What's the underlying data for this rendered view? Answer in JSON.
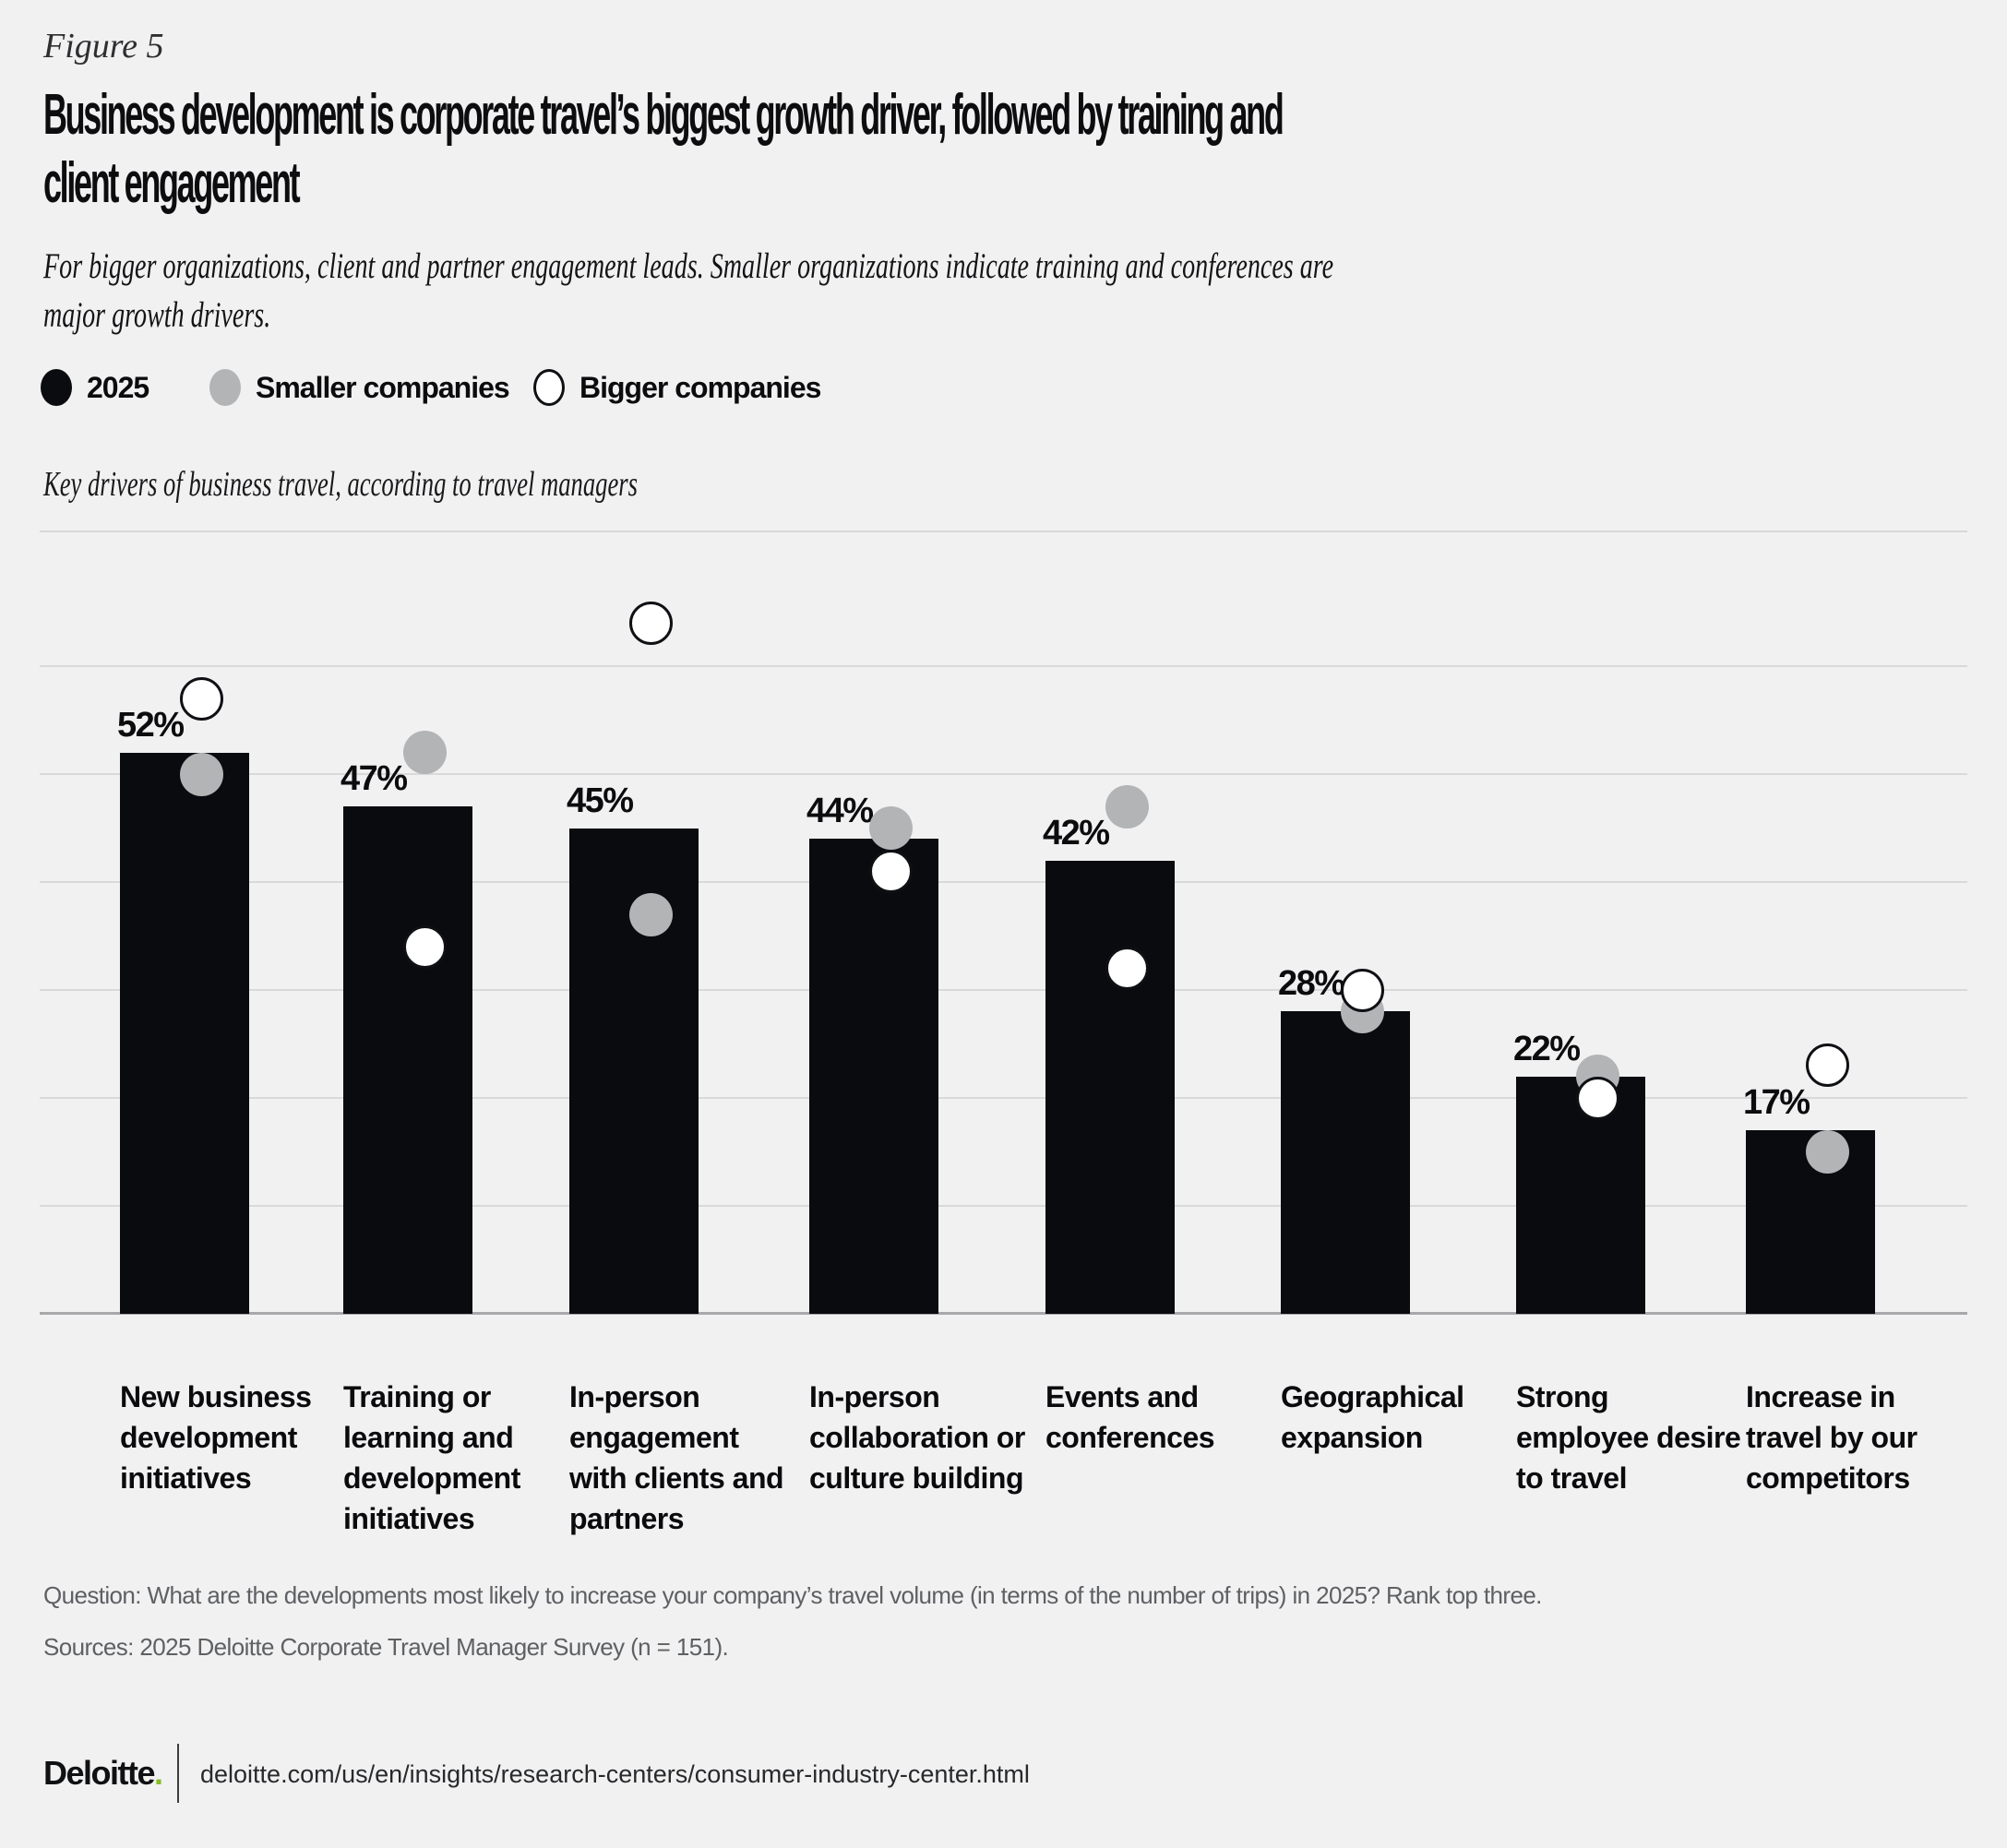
{
  "figure_label": "Figure 5",
  "title": "Business development is corporate travel’s biggest growth driver, followed by training and client engagement",
  "subtitle": "For bigger organizations, client and partner engagement leads. Smaller organizations indicate training and conferences are major growth drivers.",
  "legend": {
    "items": [
      {
        "label": "2025"
      },
      {
        "label": "Smaller companies"
      },
      {
        "label": "Bigger companies"
      }
    ]
  },
  "chart_label": "Key drivers of business travel, according to travel managers",
  "chart_data": {
    "type": "bar",
    "title": "Key drivers of business travel, according to travel managers",
    "categories": [
      "New business development initiatives",
      "Training or learning and development initiatives",
      "In-person engagement with clients and partners",
      "In-person collaboration or culture building",
      "Events and conferences",
      "Geographical expansion",
      "Strong employee desire to travel",
      "Increase in travel by our competitors"
    ],
    "series": [
      {
        "name": "2025",
        "style": "black-bar",
        "values": [
          52,
          47,
          45,
          44,
          42,
          28,
          22,
          17
        ],
        "value_labels": [
          "52%",
          "47%",
          "45%",
          "44%",
          "42%",
          "28%",
          "22%",
          "17%"
        ]
      },
      {
        "name": "Smaller companies",
        "style": "gray-dot",
        "values": [
          50,
          52,
          37,
          45,
          47,
          28,
          22,
          15
        ]
      },
      {
        "name": "Bigger companies",
        "style": "white-dot",
        "values": [
          57,
          34,
          64,
          41,
          32,
          30,
          20,
          23
        ]
      }
    ],
    "ylabel": "",
    "xlabel": "",
    "ylim": [
      0,
      72.5
    ],
    "gridline_values": [
      10,
      20,
      30,
      40,
      50,
      60
    ],
    "grid_on": true,
    "legend_position": "top"
  },
  "footnote": {
    "question": "Question: What are the developments most likely to increase your company’s travel volume (in terms of the number of trips) in 2025? Rank top three.",
    "sources": "Sources: 2025 Deloitte Corporate Travel Manager Survey (n = 151)."
  },
  "footer": {
    "brand": "Deloitte",
    "brand_dot": ".",
    "url": "deloitte.com/us/en/insights/research-centers/consumer-industry-center.html"
  },
  "colors": {
    "background": "#f1f1f2",
    "bar": "#0a0b0f",
    "gray_dot": "#b3b4b5",
    "white_dot": "#ffffff",
    "gridline": "#d9d9da",
    "baseline": "#a8a8aa",
    "footnote_text": "#5e6063",
    "deloitte_green": "#86bc25"
  }
}
